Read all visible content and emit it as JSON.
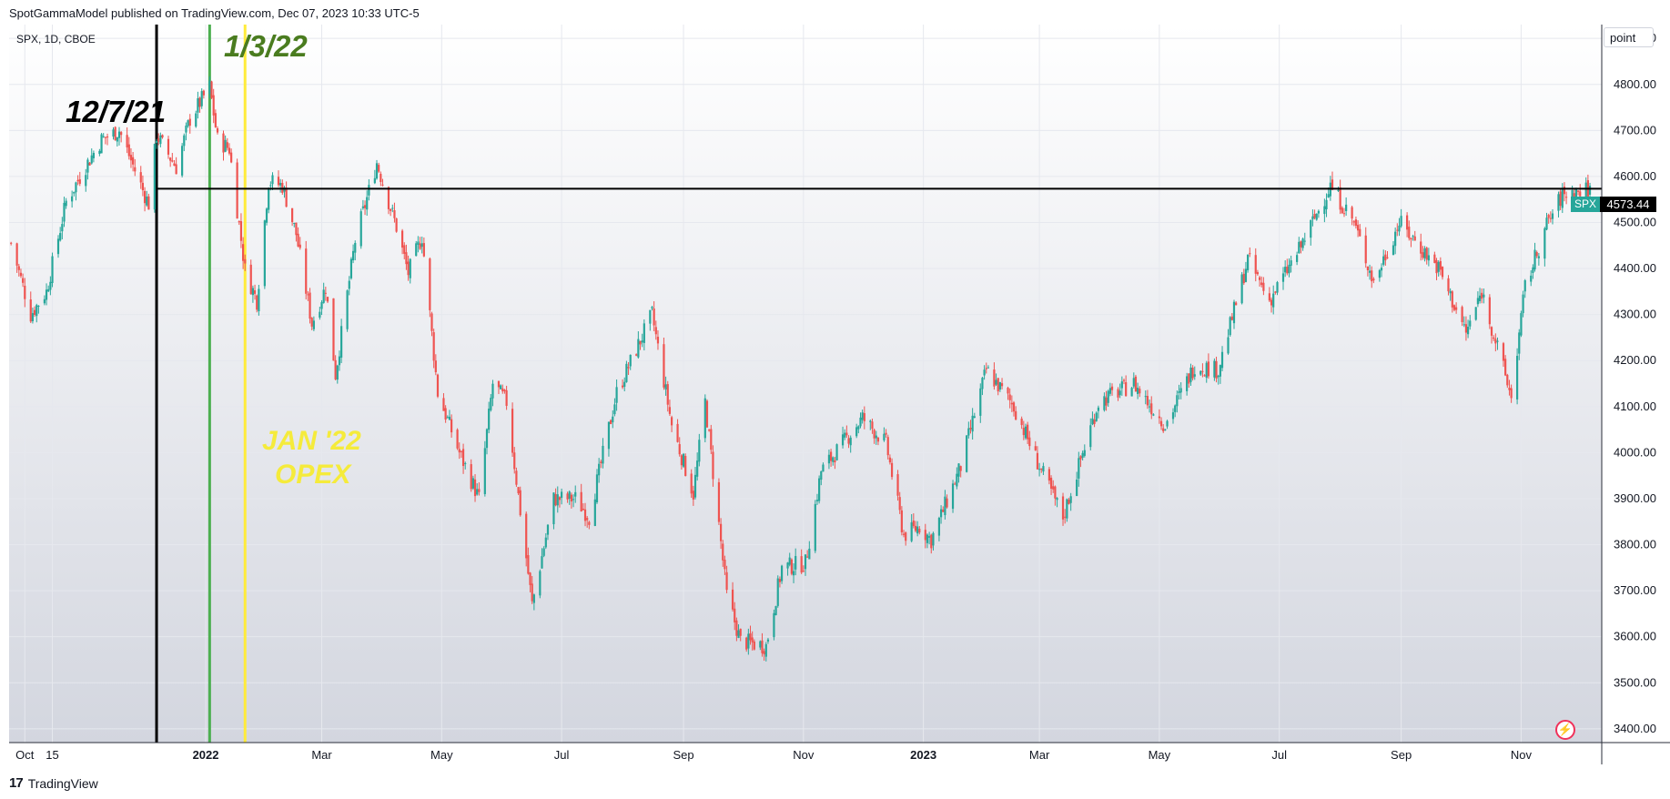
{
  "header": {
    "text": "SpotGammaModel published on TradingView.com, Dec 07, 2023 10:33 UTC-5"
  },
  "symbol": {
    "label": "SPX, 1D, CBOE"
  },
  "unit_selector": {
    "label": "point"
  },
  "price_tag": {
    "symbol": "SPX",
    "value": "4573.44"
  },
  "annotations": {
    "dec": "12/7/21",
    "jan": "1/3/22",
    "opex_line1": "JAN '22",
    "opex_line2": "OPEX"
  },
  "footer": {
    "logo": "17",
    "brand": "TradingView"
  },
  "colors": {
    "up": "#26a69a",
    "down": "#ef5350",
    "black_line": "#000000",
    "green_line": "#4caf50",
    "yellow_line": "#ffeb3b"
  },
  "icons": {
    "flash": "lightning-icon"
  },
  "chart_data": {
    "type": "candlestick",
    "title": "SPX, 1D, CBOE",
    "xlabel": "",
    "ylabel": "",
    "ylim": [
      3370,
      4930
    ],
    "y_ticks": [
      "3400.00",
      "3500.00",
      "3600.00",
      "3700.00",
      "3800.00",
      "3900.00",
      "4000.00",
      "4100.00",
      "4200.00",
      "4300.00",
      "4400.00",
      "4500.00",
      "4600.00",
      "4700.00",
      "4800.00",
      "4900.00"
    ],
    "x_ticks": [
      "Oct",
      "15",
      "2022",
      "Mar",
      "May",
      "Jul",
      "Sep",
      "Nov",
      "2023",
      "Mar",
      "May",
      "Jul",
      "Sep",
      "Nov"
    ],
    "x_range": [
      "2021-09-23",
      "2023-12-12"
    ],
    "x_tick_dates": [
      "2021-10-01",
      "2021-10-15",
      "2022-01-01",
      "2022-03-01",
      "2022-05-01",
      "2022-07-01",
      "2022-09-01",
      "2022-11-01",
      "2023-01-01",
      "2023-03-01",
      "2023-05-01",
      "2023-07-01",
      "2023-09-01",
      "2023-11-01"
    ],
    "last_price": 4573.44,
    "horizontal_line": 4573.44,
    "vertical_lines": [
      {
        "date": "2021-12-07",
        "color": "black",
        "label": "12/7/21"
      },
      {
        "date": "2022-01-03",
        "color": "green",
        "label": "1/3/22"
      },
      {
        "date": "2022-01-21",
        "color": "yellow",
        "label": "JAN '22 OPEX"
      }
    ],
    "series": [
      {
        "name": "SPX",
        "points": [
          [
            "2021-09-24",
            4455
          ],
          [
            "2021-10-04",
            4300
          ],
          [
            "2021-10-12",
            4350
          ],
          [
            "2021-10-22",
            4545
          ],
          [
            "2021-11-02",
            4630
          ],
          [
            "2021-11-09",
            4680
          ],
          [
            "2021-11-18",
            4700
          ],
          [
            "2021-11-30",
            4570
          ],
          [
            "2021-12-03",
            4540
          ],
          [
            "2021-12-07",
            4690
          ],
          [
            "2021-12-17",
            4620
          ],
          [
            "2021-12-24",
            4725
          ],
          [
            "2022-01-03",
            4795
          ],
          [
            "2022-01-07",
            4680
          ],
          [
            "2022-01-13",
            4660
          ],
          [
            "2022-01-21",
            4397
          ],
          [
            "2022-01-27",
            4330
          ],
          [
            "2022-02-02",
            4590
          ],
          [
            "2022-02-09",
            4580
          ],
          [
            "2022-02-16",
            4475
          ],
          [
            "2022-02-24",
            4280
          ],
          [
            "2022-03-03",
            4360
          ],
          [
            "2022-03-08",
            4170
          ],
          [
            "2022-03-18",
            4460
          ],
          [
            "2022-03-29",
            4630
          ],
          [
            "2022-04-08",
            4490
          ],
          [
            "2022-04-14",
            4390
          ],
          [
            "2022-04-21",
            4470
          ],
          [
            "2022-04-29",
            4130
          ],
          [
            "2022-05-10",
            4000
          ],
          [
            "2022-05-20",
            3900
          ],
          [
            "2022-05-27",
            4150
          ],
          [
            "2022-06-03",
            4110
          ],
          [
            "2022-06-16",
            3670
          ],
          [
            "2022-06-27",
            3900
          ],
          [
            "2022-07-08",
            3900
          ],
          [
            "2022-07-15",
            3860
          ],
          [
            "2022-07-29",
            4130
          ],
          [
            "2022-08-16",
            4300
          ],
          [
            "2022-08-26",
            4060
          ],
          [
            "2022-09-06",
            3910
          ],
          [
            "2022-09-12",
            4110
          ],
          [
            "2022-09-23",
            3690
          ],
          [
            "2022-09-30",
            3590
          ],
          [
            "2022-10-13",
            3580
          ],
          [
            "2022-10-21",
            3750
          ],
          [
            "2022-11-02",
            3760
          ],
          [
            "2022-11-10",
            3960
          ],
          [
            "2022-12-01",
            4075
          ],
          [
            "2022-12-13",
            4020
          ],
          [
            "2022-12-22",
            3820
          ],
          [
            "2022-12-30",
            3840
          ],
          [
            "2023-01-05",
            3810
          ],
          [
            "2023-01-20",
            3970
          ],
          [
            "2023-02-02",
            4180
          ],
          [
            "2023-02-16",
            4100
          ],
          [
            "2023-03-02",
            3960
          ],
          [
            "2023-03-13",
            3860
          ],
          [
            "2023-03-31",
            4110
          ],
          [
            "2023-04-18",
            4150
          ],
          [
            "2023-05-04",
            4060
          ],
          [
            "2023-05-19",
            4190
          ],
          [
            "2023-05-31",
            4180
          ],
          [
            "2023-06-15",
            4420
          ],
          [
            "2023-06-26",
            4330
          ],
          [
            "2023-07-11",
            4440
          ],
          [
            "2023-07-27",
            4580
          ],
          [
            "2023-08-08",
            4500
          ],
          [
            "2023-08-18",
            4370
          ],
          [
            "2023-08-31",
            4500
          ],
          [
            "2023-09-20",
            4400
          ],
          [
            "2023-10-04",
            4260
          ],
          [
            "2023-10-12",
            4350
          ],
          [
            "2023-10-27",
            4120
          ],
          [
            "2023-11-03",
            4360
          ],
          [
            "2023-11-14",
            4495
          ],
          [
            "2023-11-22",
            4560
          ],
          [
            "2023-12-07",
            4573
          ]
        ]
      }
    ]
  }
}
